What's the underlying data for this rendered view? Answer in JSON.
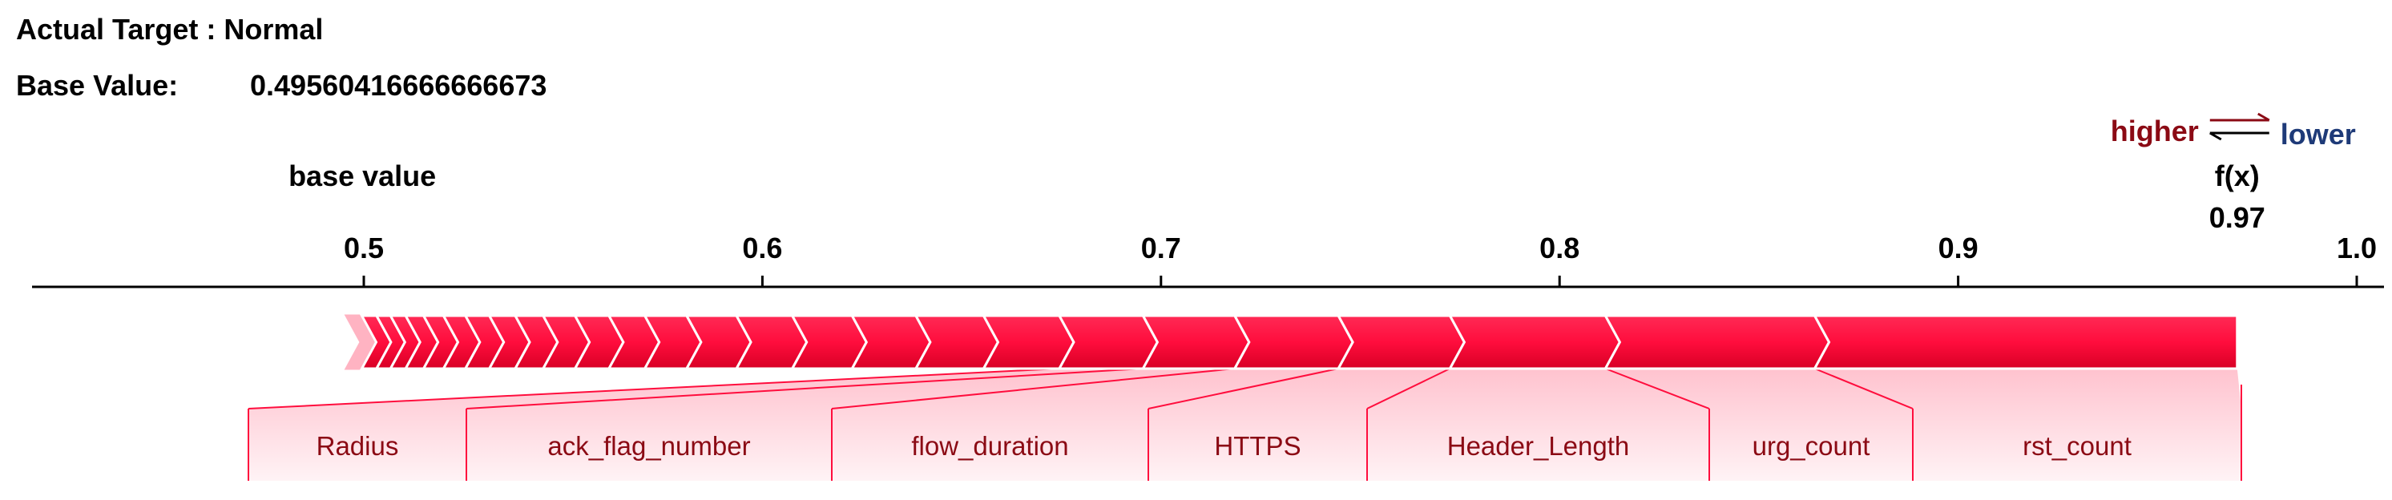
{
  "header": {
    "actual_target": "Actual Target : Normal",
    "base_value_label": "Base Value:",
    "base_value": "0.49560416666666673"
  },
  "chart_data": {
    "type": "force",
    "base_value": 0.49560416666666673,
    "base_value_caption": "base value",
    "output_value": 0.97,
    "output_caption": "f(x)",
    "output_value_label": "0.97",
    "legend": {
      "higher": "higher",
      "lower": "lower"
    },
    "xlim": [
      0.41,
      1.0
    ],
    "ticks": [
      {
        "value": 0.5,
        "label": "0.5"
      },
      {
        "value": 0.6,
        "label": "0.6"
      },
      {
        "value": 0.7,
        "label": "0.7"
      },
      {
        "value": 0.8,
        "label": "0.8"
      },
      {
        "value": 0.9,
        "label": "0.9"
      },
      {
        "value": 1.0,
        "label": "1.0"
      }
    ],
    "segments": [
      {
        "start": 0.4956,
        "end": 0.4995,
        "name": ""
      },
      {
        "start": 0.4995,
        "end": 0.5032,
        "name": ""
      },
      {
        "start": 0.5032,
        "end": 0.5067,
        "name": ""
      },
      {
        "start": 0.5067,
        "end": 0.5105,
        "name": ""
      },
      {
        "start": 0.5105,
        "end": 0.515,
        "name": ""
      },
      {
        "start": 0.515,
        "end": 0.52,
        "name": ""
      },
      {
        "start": 0.52,
        "end": 0.5255,
        "name": ""
      },
      {
        "start": 0.5255,
        "end": 0.5315,
        "name": ""
      },
      {
        "start": 0.5315,
        "end": 0.538,
        "name": ""
      },
      {
        "start": 0.538,
        "end": 0.545,
        "name": ""
      },
      {
        "start": 0.545,
        "end": 0.553,
        "name": ""
      },
      {
        "start": 0.553,
        "end": 0.5615,
        "name": ""
      },
      {
        "start": 0.5615,
        "end": 0.5705,
        "name": ""
      },
      {
        "start": 0.5705,
        "end": 0.581,
        "name": ""
      },
      {
        "start": 0.581,
        "end": 0.5935,
        "name": ""
      },
      {
        "start": 0.5935,
        "end": 0.6075,
        "name": ""
      },
      {
        "start": 0.6075,
        "end": 0.6225,
        "name": ""
      },
      {
        "start": 0.6225,
        "end": 0.6385,
        "name": ""
      },
      {
        "start": 0.6385,
        "end": 0.6555,
        "name": ""
      },
      {
        "start": 0.6555,
        "end": 0.6745,
        "name": ""
      },
      {
        "start": 0.6745,
        "end": 0.6955,
        "name": "Radius"
      },
      {
        "start": 0.6955,
        "end": 0.7185,
        "name": "ack_flag_number"
      },
      {
        "start": 0.7185,
        "end": 0.7445,
        "name": "flow_duration"
      },
      {
        "start": 0.7445,
        "end": 0.7725,
        "name": "HTTPS"
      },
      {
        "start": 0.7725,
        "end": 0.8115,
        "name": "Header_Length"
      },
      {
        "start": 0.8115,
        "end": 0.864,
        "name": "urg_count"
      },
      {
        "start": 0.864,
        "end": 0.97,
        "name": "rst_count"
      }
    ],
    "labels": [
      {
        "text": "Radius",
        "start": 0.6745,
        "end": 0.6955
      },
      {
        "text": "ack_flag_number",
        "start": 0.6955,
        "end": 0.7185
      },
      {
        "text": "flow_duration",
        "start": 0.7185,
        "end": 0.7445
      },
      {
        "text": "HTTPS",
        "start": 0.7445,
        "end": 0.7725
      },
      {
        "text": "Header_Length",
        "start": 0.7725,
        "end": 0.8115
      },
      {
        "text": "urg_count",
        "start": 0.8115,
        "end": 0.864
      },
      {
        "text": "rst_count",
        "start": 0.864,
        "end": 0.97
      }
    ],
    "colors": {
      "positive": "#ff0d3d",
      "positive_dark": "#c0001c",
      "label_text": "#8b0a14",
      "lower_text": "#1e3a78"
    }
  }
}
